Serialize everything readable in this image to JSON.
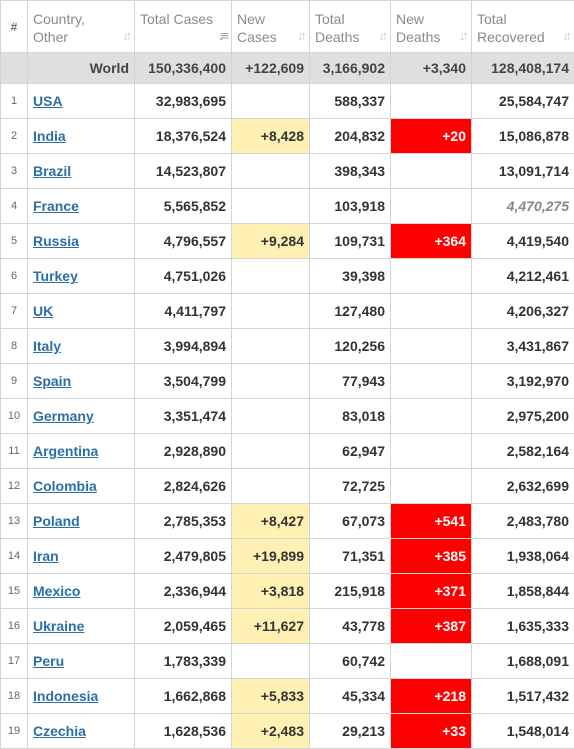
{
  "header": {
    "index": "#",
    "country": "Country, Other",
    "total_cases": "Total Cases",
    "new_cases": "New Cases",
    "total_deaths": "Total Deaths",
    "new_deaths": "New Deaths",
    "total_recovered": "Total Recovered",
    "sort_icon": "sort-arrows-icon"
  },
  "world": {
    "country": "World",
    "total_cases": "150,336,400",
    "new_cases": "+122,609",
    "total_deaths": "3,166,902",
    "new_deaths": "+3,340",
    "total_recovered": "128,408,174"
  },
  "colors": {
    "new_cases_highlight": "#fff0b3",
    "new_deaths_highlight": "#ff0000",
    "link": "#2d6fa5"
  },
  "rows": [
    {
      "idx": "1",
      "country": "USA",
      "total_cases": "32,983,695",
      "new_cases": "",
      "total_deaths": "588,337",
      "new_deaths": "",
      "total_recovered": "25,584,747"
    },
    {
      "idx": "2",
      "country": "India",
      "total_cases": "18,376,524",
      "new_cases": "+8,428",
      "total_deaths": "204,832",
      "new_deaths": "+20",
      "total_recovered": "15,086,878"
    },
    {
      "idx": "3",
      "country": "Brazil",
      "total_cases": "14,523,807",
      "new_cases": "",
      "total_deaths": "398,343",
      "new_deaths": "",
      "total_recovered": "13,091,714"
    },
    {
      "idx": "4",
      "country": "France",
      "total_cases": "5,565,852",
      "new_cases": "",
      "total_deaths": "103,918",
      "new_deaths": "",
      "total_recovered": "4,470,275"
    },
    {
      "idx": "5",
      "country": "Russia",
      "total_cases": "4,796,557",
      "new_cases": "+9,284",
      "total_deaths": "109,731",
      "new_deaths": "+364",
      "total_recovered": "4,419,540"
    },
    {
      "idx": "6",
      "country": "Turkey",
      "total_cases": "4,751,026",
      "new_cases": "",
      "total_deaths": "39,398",
      "new_deaths": "",
      "total_recovered": "4,212,461"
    },
    {
      "idx": "7",
      "country": "UK",
      "total_cases": "4,411,797",
      "new_cases": "",
      "total_deaths": "127,480",
      "new_deaths": "",
      "total_recovered": "4,206,327"
    },
    {
      "idx": "8",
      "country": "Italy",
      "total_cases": "3,994,894",
      "new_cases": "",
      "total_deaths": "120,256",
      "new_deaths": "",
      "total_recovered": "3,431,867"
    },
    {
      "idx": "9",
      "country": "Spain",
      "total_cases": "3,504,799",
      "new_cases": "",
      "total_deaths": "77,943",
      "new_deaths": "",
      "total_recovered": "3,192,970"
    },
    {
      "idx": "10",
      "country": "Germany",
      "total_cases": "3,351,474",
      "new_cases": "",
      "total_deaths": "83,018",
      "new_deaths": "",
      "total_recovered": "2,975,200"
    },
    {
      "idx": "11",
      "country": "Argentina",
      "total_cases": "2,928,890",
      "new_cases": "",
      "total_deaths": "62,947",
      "new_deaths": "",
      "total_recovered": "2,582,164"
    },
    {
      "idx": "12",
      "country": "Colombia",
      "total_cases": "2,824,626",
      "new_cases": "",
      "total_deaths": "72,725",
      "new_deaths": "",
      "total_recovered": "2,632,699"
    },
    {
      "idx": "13",
      "country": "Poland",
      "total_cases": "2,785,353",
      "new_cases": "+8,427",
      "total_deaths": "67,073",
      "new_deaths": "+541",
      "total_recovered": "2,483,780"
    },
    {
      "idx": "14",
      "country": "Iran",
      "total_cases": "2,479,805",
      "new_cases": "+19,899",
      "total_deaths": "71,351",
      "new_deaths": "+385",
      "total_recovered": "1,938,064"
    },
    {
      "idx": "15",
      "country": "Mexico",
      "total_cases": "2,336,944",
      "new_cases": "+3,818",
      "total_deaths": "215,918",
      "new_deaths": "+371",
      "total_recovered": "1,858,844"
    },
    {
      "idx": "16",
      "country": "Ukraine",
      "total_cases": "2,059,465",
      "new_cases": "+11,627",
      "total_deaths": "43,778",
      "new_deaths": "+387",
      "total_recovered": "1,635,333"
    },
    {
      "idx": "17",
      "country": "Peru",
      "total_cases": "1,783,339",
      "new_cases": "",
      "total_deaths": "60,742",
      "new_deaths": "",
      "total_recovered": "1,688,091"
    },
    {
      "idx": "18",
      "country": "Indonesia",
      "total_cases": "1,662,868",
      "new_cases": "+5,833",
      "total_deaths": "45,334",
      "new_deaths": "+218",
      "total_recovered": "1,517,432"
    },
    {
      "idx": "19",
      "country": "Czechia",
      "total_cases": "1,628,536",
      "new_cases": "+2,483",
      "total_deaths": "29,213",
      "new_deaths": "+33",
      "total_recovered": "1,548,014"
    }
  ]
}
